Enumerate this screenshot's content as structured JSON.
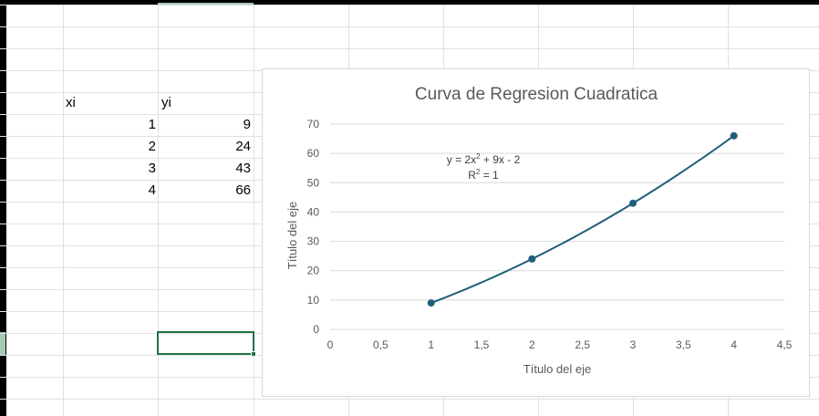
{
  "sheet": {
    "header_x": "xi",
    "header_y": "yi",
    "rows": [
      {
        "x": "1",
        "y": "9"
      },
      {
        "x": "2",
        "y": "24"
      },
      {
        "x": "3",
        "y": "43"
      },
      {
        "x": "4",
        "y": "66"
      }
    ]
  },
  "colors": {
    "series": "#1f5f7a",
    "selection": "#217346",
    "gridline": "#d9d9d9"
  },
  "chart_data": {
    "type": "scatter",
    "title": "Curva de Regresion  Cuadratica",
    "xlabel": "Título del eje",
    "ylabel": "Título del eje",
    "xlim": [
      0,
      4.5
    ],
    "ylim": [
      0,
      70
    ],
    "x_ticks": [
      "0",
      "0,5",
      "1",
      "1,5",
      "2",
      "2,5",
      "3",
      "3,5",
      "4",
      "4,5"
    ],
    "y_ticks": [
      "0",
      "10",
      "20",
      "30",
      "40",
      "50",
      "60",
      "70"
    ],
    "grid": true,
    "x": [
      1,
      2,
      3,
      4
    ],
    "y": [
      9,
      24,
      43,
      66
    ],
    "trendline": {
      "type": "polynomial",
      "order": 2,
      "coefficients": [
        2,
        9,
        -2
      ],
      "equation_pre": "y = 2x",
      "equation_exp": "2",
      "equation_post": " + 9x - 2",
      "r2_pre": "R",
      "r2_exp": "2",
      "r2_post": " = 1"
    }
  }
}
